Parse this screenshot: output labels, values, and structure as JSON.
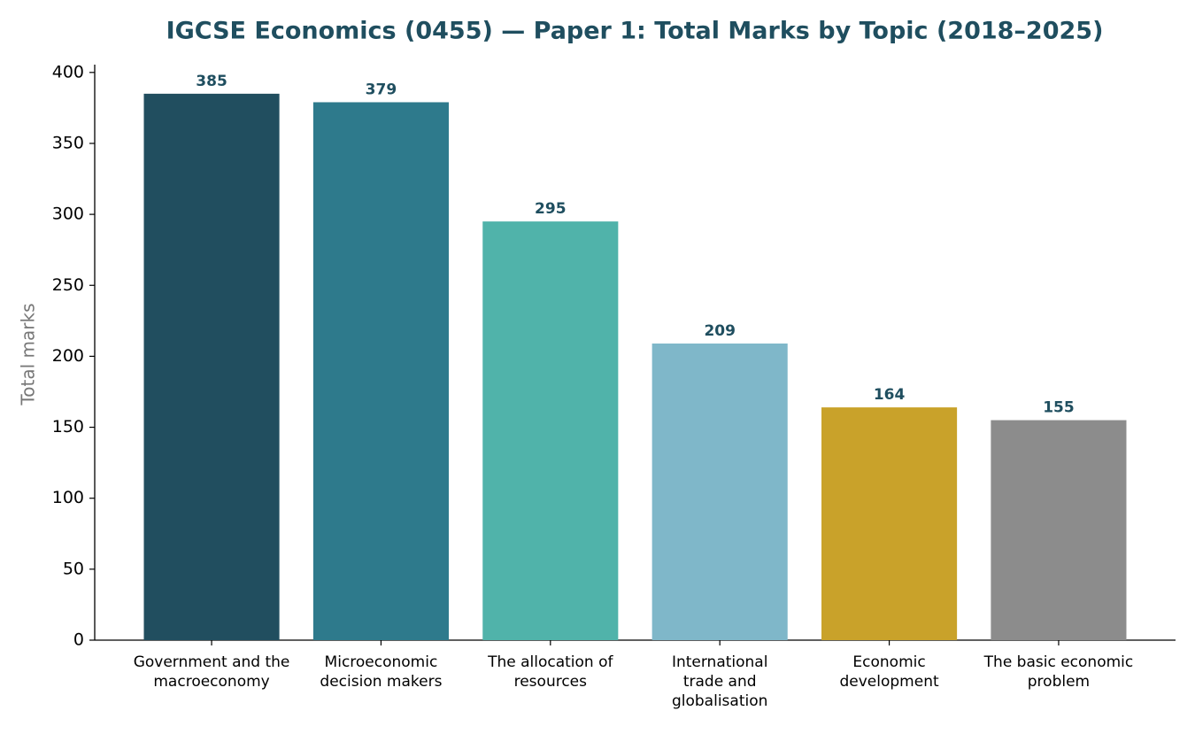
{
  "chart_data": {
    "type": "bar",
    "title": "IGCSE Economics (0455) — Paper 1: Total Marks by Topic (2018–2025)",
    "y_label": "Total marks",
    "categories": [
      "Government and the macroeconomy",
      "Microeconomic decision makers",
      "The allocation of resources",
      "International trade and globalisation",
      "Economic development",
      "The basic economic problem"
    ],
    "values": [
      385,
      379,
      295,
      209,
      164,
      155
    ],
    "colors": [
      "#214e5f",
      "#2e7a8c",
      "#50b3aa",
      "#7fb7c9",
      "#c9a22a",
      "#8c8c8c"
    ],
    "ylim": [
      0,
      404.25
    ],
    "yticks": [
      0,
      50,
      100,
      150,
      200,
      250,
      300,
      350,
      400
    ],
    "grid": false
  }
}
